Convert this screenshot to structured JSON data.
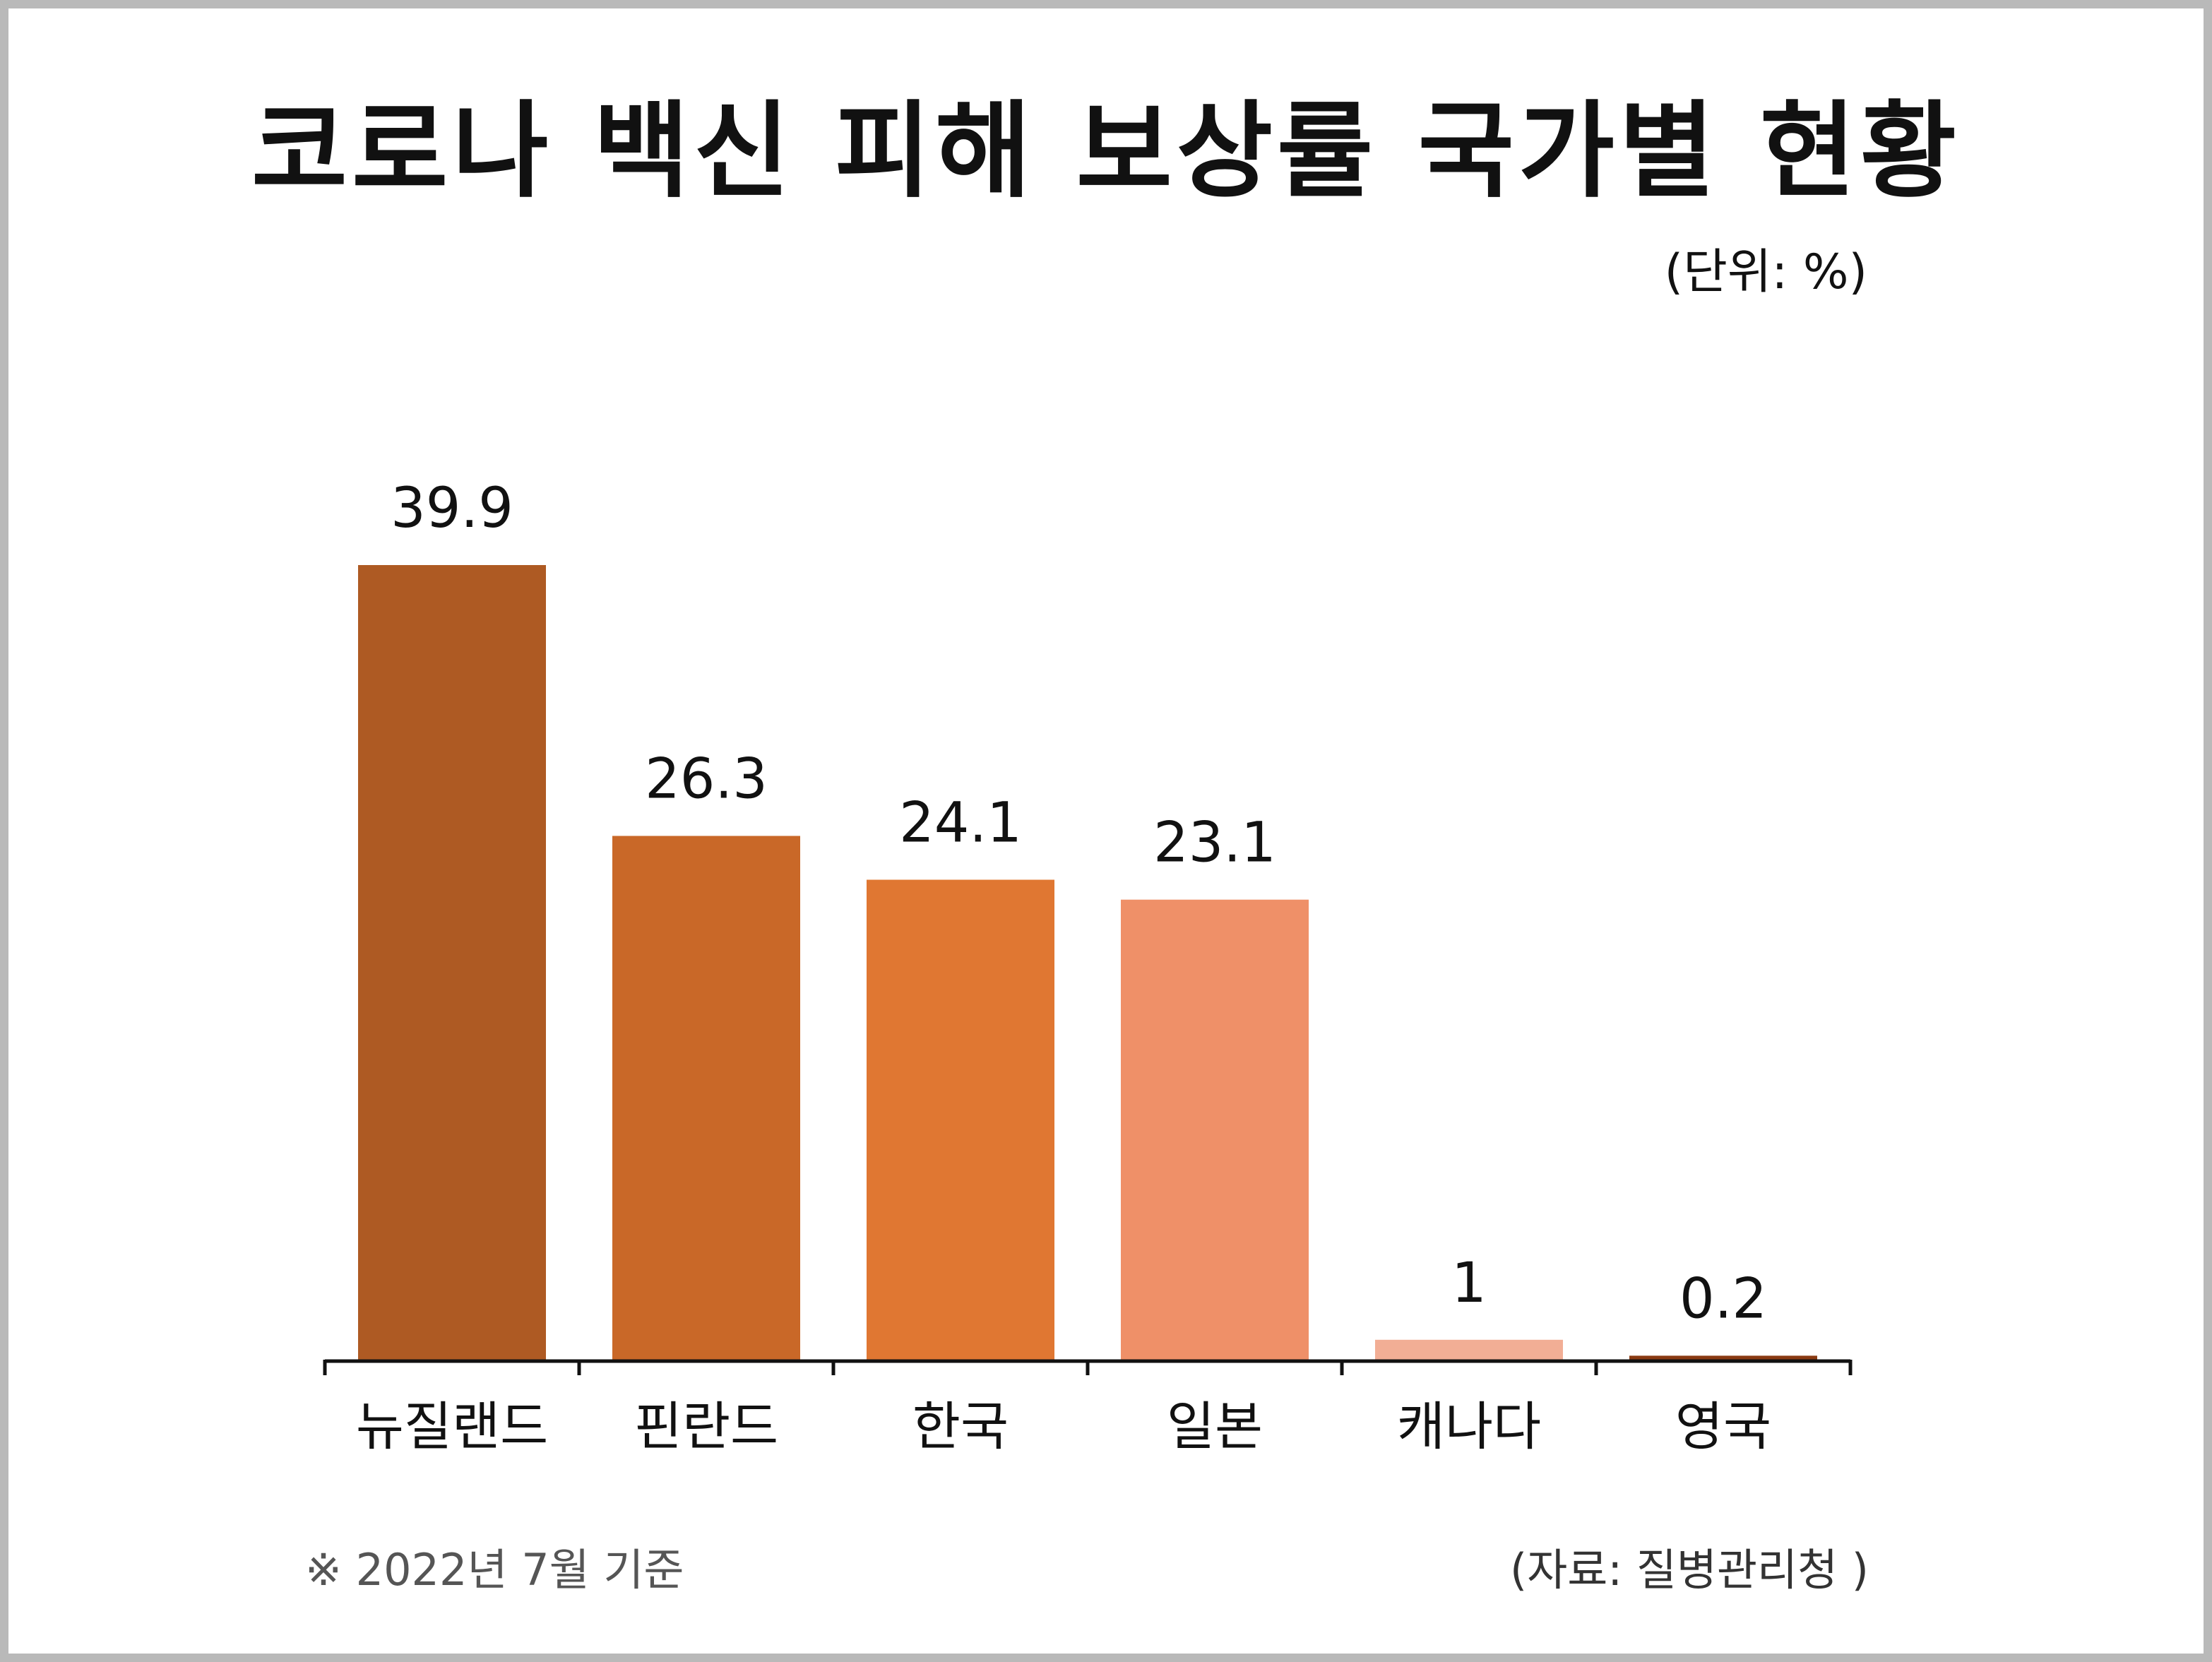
{
  "title": "코로나 백신 피해 보상률 국가별 현황",
  "unit_label": "(단위: %)",
  "footnote": "※ 2022년 7월 기준",
  "source": "(자료: 질병관리청 )",
  "chart_data": {
    "type": "bar",
    "title": "코로나 백신 피해 보상률 국가별 현황",
    "categories": [
      "뉴질랜드",
      "핀란드",
      "한국",
      "일본",
      "캐나다",
      "영국"
    ],
    "values": [
      39.9,
      26.3,
      24.1,
      23.1,
      1,
      0.2
    ],
    "value_labels": [
      "39.9",
      "26.3",
      "24.1",
      "23.1",
      "1",
      "0.2"
    ],
    "colors": [
      "#AE5A23",
      "#C96828",
      "#E07732",
      "#EF9068",
      "#F2AE95",
      "#8A3A12"
    ],
    "xlabel": "",
    "ylabel": "",
    "ylim": [
      0,
      40
    ],
    "grid": false,
    "legend": "none"
  }
}
